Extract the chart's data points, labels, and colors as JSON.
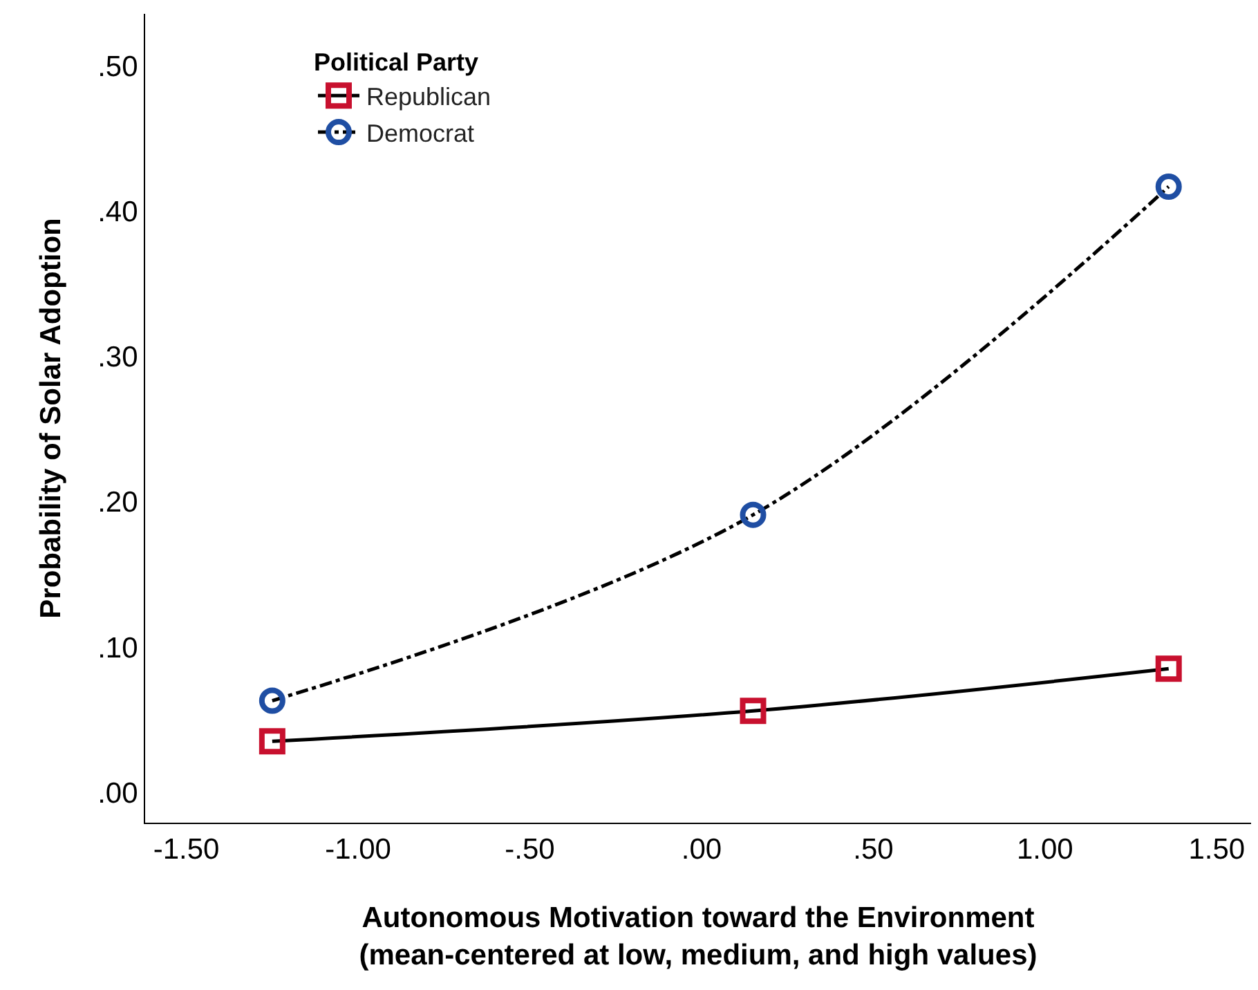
{
  "chart_data": {
    "type": "line",
    "xlabel": "Autonomous Motivation toward the Environment\n(mean-centered at low, medium, and high values)",
    "ylabel": "Probability of Solar Adoption",
    "legend_title": "Political Party",
    "x": [
      -1.25,
      0.15,
      1.36
    ],
    "series": [
      {
        "name": "Republican",
        "color": "#c8102e",
        "marker": "square",
        "line_style": "solid",
        "values": [
          0.035,
          0.056,
          0.085
        ]
      },
      {
        "name": "Democrat",
        "color": "#1f4ea3",
        "marker": "circle",
        "line_style": "dashed",
        "values": [
          0.063,
          0.191,
          0.417
        ]
      }
    ],
    "xlim": [
      -1.62,
      1.6
    ],
    "xticks": [
      {
        "value": -1.5,
        "label": "-1.50"
      },
      {
        "value": -1.0,
        "label": "-1.00"
      },
      {
        "value": -0.5,
        "label": "-.50"
      },
      {
        "value": 0,
        "label": ".00"
      },
      {
        "value": 0.5,
        "label": ".50"
      },
      {
        "value": 1.0,
        "label": "1.00"
      },
      {
        "value": 1.5,
        "label": "1.50"
      }
    ],
    "ylim": [
      -0.021,
      0.536
    ],
    "yticks": [
      {
        "value": 0,
        "label": ".00"
      },
      {
        "value": 0.1,
        "label": ".10"
      },
      {
        "value": 0.2,
        "label": ".20"
      },
      {
        "value": 0.3,
        "label": ".30"
      },
      {
        "value": 0.4,
        "label": ".40"
      },
      {
        "value": 0.5,
        "label": ".50"
      }
    ],
    "legend": "top left"
  }
}
